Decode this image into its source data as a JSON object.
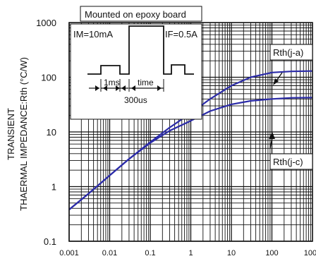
{
  "chart_data": {
    "type": "line",
    "ylabel_line1": "TRANSIENT",
    "ylabel_line2": "THAERMAL IMPEDANCE:Rth (°C/W)",
    "xlabel": "",
    "x_scale": "log",
    "y_scale": "log",
    "xlim": [
      0.001,
      1000
    ],
    "ylim": [
      0.1,
      1000
    ],
    "x_ticks": [
      0.001,
      0.01,
      0.1,
      1,
      10,
      100,
      1000
    ],
    "x_tick_labels": [
      "0.001",
      "0.01",
      "0.1",
      "1",
      "10",
      "100",
      "1000"
    ],
    "y_ticks": [
      0.1,
      1,
      10,
      100,
      1000
    ],
    "y_tick_labels": [
      "0.1",
      "1",
      "10",
      "100",
      "1000"
    ],
    "grid": true,
    "line_color": "#2b2ba8",
    "series": [
      {
        "name": "Rth(j-a)",
        "x": [
          0.001,
          0.003,
          0.01,
          0.03,
          0.1,
          0.3,
          1,
          3,
          10,
          30,
          100,
          300,
          1000
        ],
        "y": [
          0.38,
          0.74,
          1.6,
          3.2,
          6.5,
          12,
          22,
          40,
          70,
          100,
          122,
          128,
          130
        ]
      },
      {
        "name": "Rth(j-c)",
        "x": [
          0.001,
          0.003,
          0.01,
          0.03,
          0.1,
          0.3,
          1,
          3,
          10,
          30,
          100,
          300,
          1000
        ],
        "y": [
          0.38,
          0.74,
          1.6,
          3.2,
          6.3,
          10.5,
          16,
          24,
          32,
          37,
          40,
          42,
          42.5
        ]
      }
    ]
  },
  "inset": {
    "title": "Mounted on epoxy board",
    "im_label": "IM=10mA",
    "if_label": "IF=0.5A",
    "ms_label": "1ms",
    "time_label": "time",
    "duration_label": "300us"
  },
  "annotations": {
    "ja_label": "Rth(j-a)",
    "jc_label": "Rth(j-c)"
  }
}
